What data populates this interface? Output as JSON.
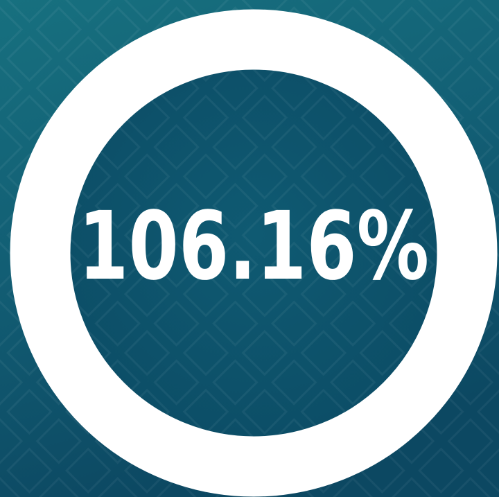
{
  "display": {
    "value_text": "106.16%"
  }
}
